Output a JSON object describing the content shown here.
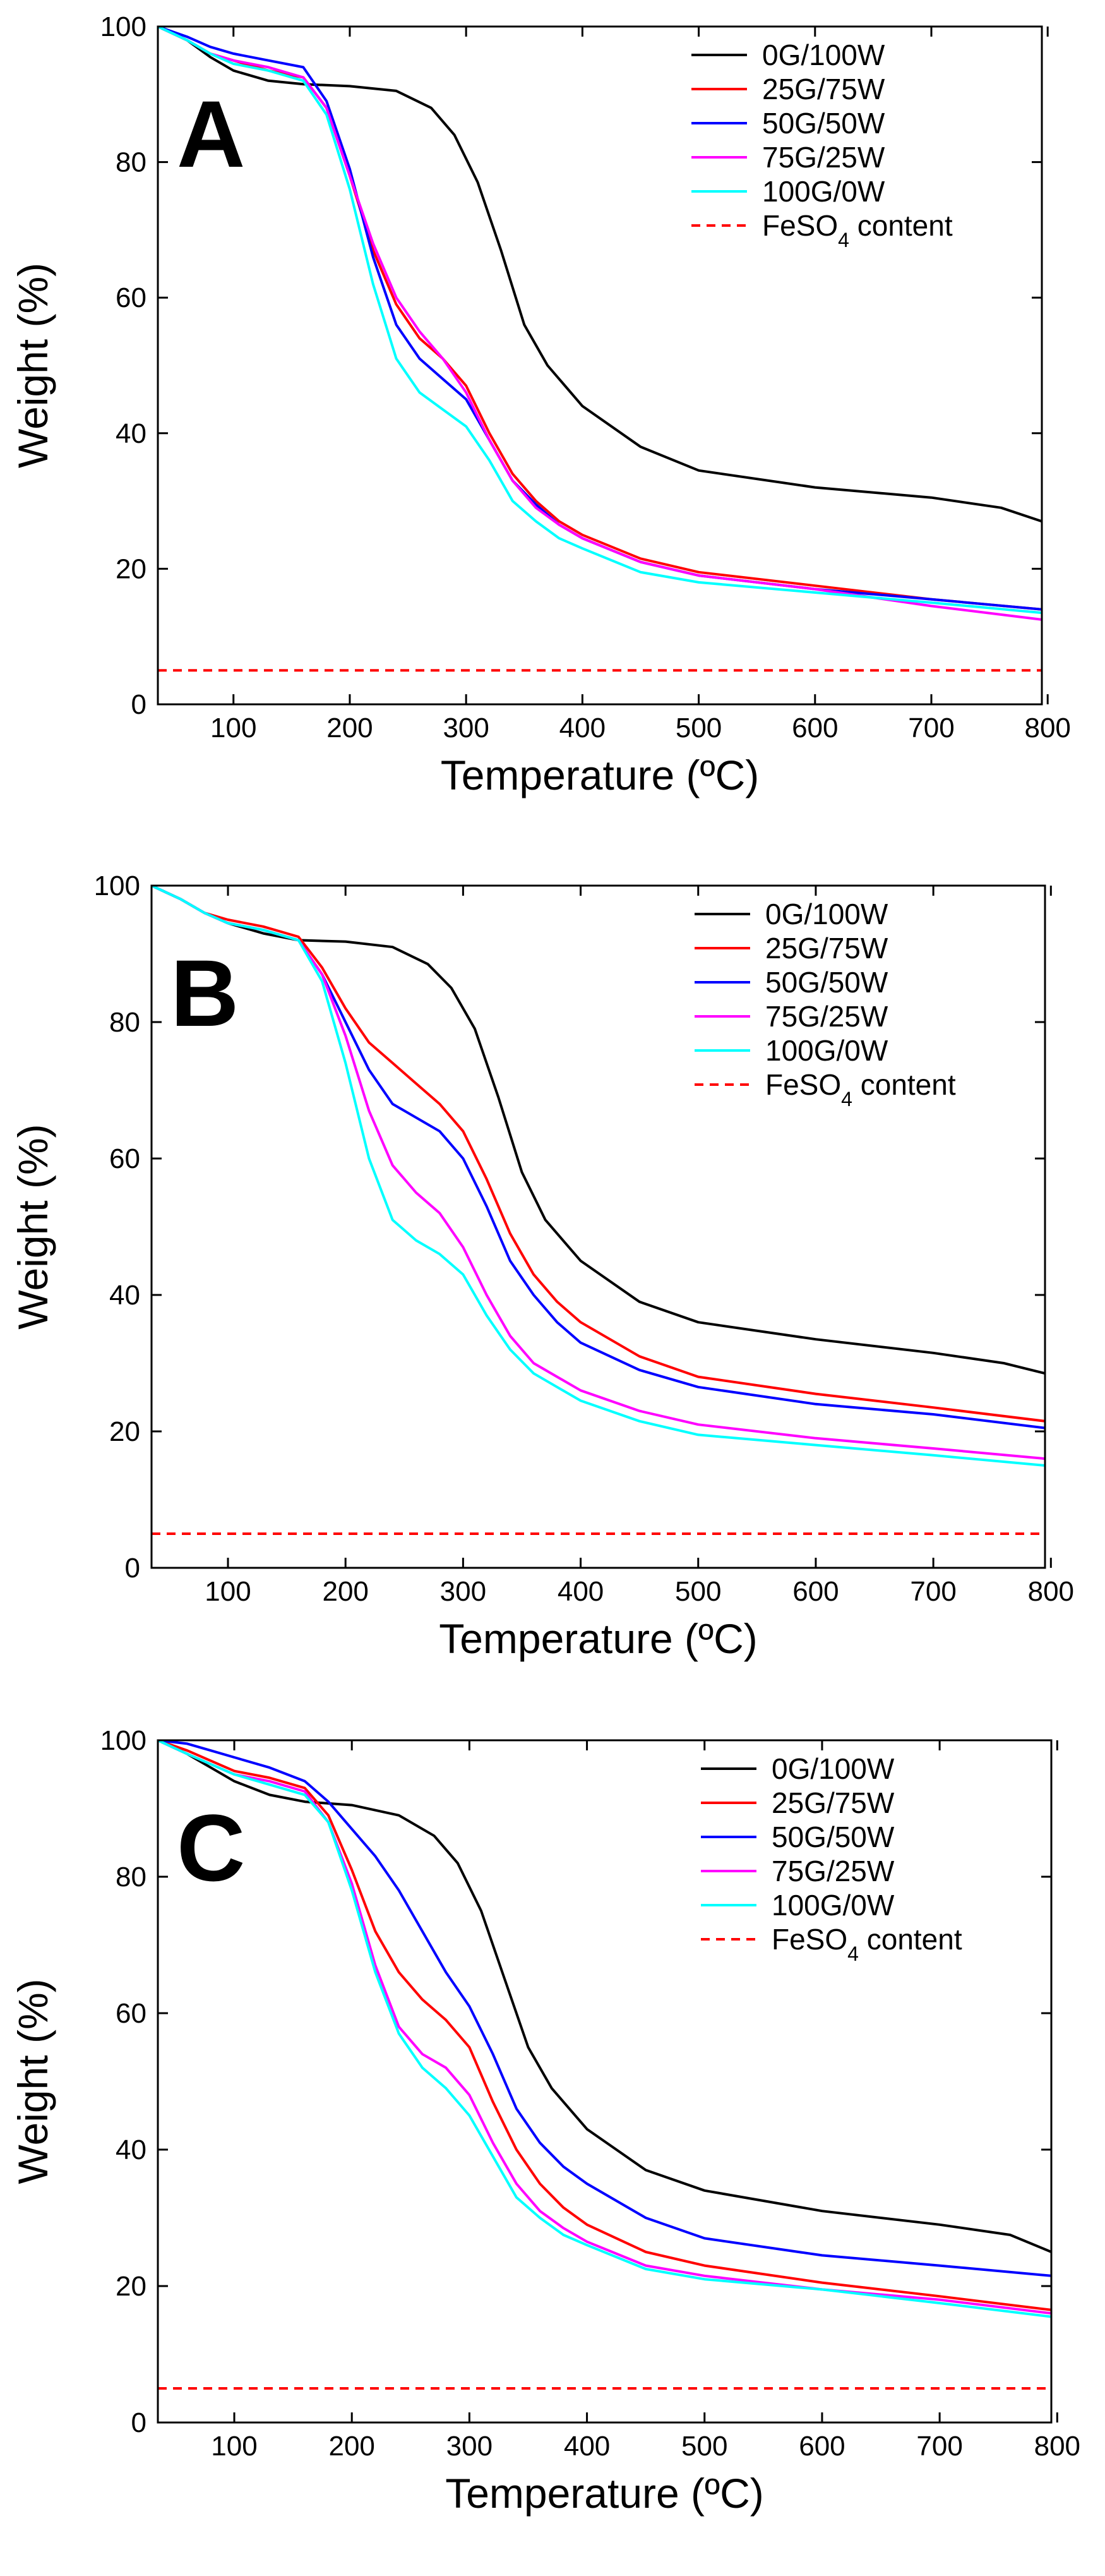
{
  "chart_data": [
    {
      "type": "line",
      "panel_label": "A",
      "xlabel": "Temperature (ºC)",
      "ylabel": "Weight (%)",
      "xlim": [
        35,
        795
      ],
      "ylim": [
        0,
        100
      ],
      "xticks": [
        100,
        200,
        300,
        400,
        500,
        600,
        700,
        800
      ],
      "yticks": [
        0,
        20,
        40,
        60,
        80,
        100
      ],
      "legend": {
        "position": "top-right"
      },
      "series": [
        {
          "name": "0G/100W",
          "color": "#000000",
          "dash": "solid",
          "x": [
            35,
            60,
            80,
            100,
            130,
            160,
            200,
            240,
            270,
            290,
            310,
            330,
            350,
            370,
            400,
            450,
            500,
            600,
            700,
            760,
            795
          ],
          "y": [
            100,
            98,
            95.5,
            93.5,
            92,
            91.5,
            91.2,
            90.5,
            88,
            84,
            77,
            67,
            56,
            50,
            44,
            38,
            34.5,
            32,
            30.5,
            29,
            27
          ]
        },
        {
          "name": "25G/75W",
          "color": "#ff0000",
          "dash": "solid",
          "x": [
            35,
            60,
            80,
            100,
            130,
            160,
            180,
            200,
            220,
            240,
            260,
            280,
            300,
            320,
            340,
            360,
            380,
            400,
            450,
            500,
            600,
            700,
            795
          ],
          "y": [
            100,
            98,
            96,
            95,
            93.5,
            92.5,
            88,
            78,
            67,
            59,
            54,
            51,
            47,
            40,
            34,
            30,
            27,
            25,
            21.5,
            19.5,
            17.5,
            15.5,
            14
          ]
        },
        {
          "name": "50G/50W",
          "color": "#0000ff",
          "dash": "solid",
          "x": [
            35,
            60,
            80,
            100,
            130,
            160,
            180,
            200,
            220,
            240,
            260,
            280,
            300,
            320,
            340,
            360,
            380,
            400,
            450,
            500,
            600,
            700,
            795
          ],
          "y": [
            100,
            98.5,
            97,
            96,
            95,
            94,
            89,
            79,
            66,
            56,
            51,
            48,
            45,
            39,
            33,
            29.5,
            26.5,
            24.5,
            21,
            19,
            17,
            15.5,
            14
          ]
        },
        {
          "name": "75G/25W",
          "color": "#ff00ff",
          "dash": "solid",
          "x": [
            35,
            60,
            80,
            100,
            130,
            160,
            180,
            200,
            220,
            240,
            260,
            280,
            300,
            320,
            340,
            360,
            380,
            400,
            450,
            500,
            600,
            700,
            795
          ],
          "y": [
            100,
            98,
            96,
            95,
            94,
            92.5,
            88,
            78,
            68,
            60,
            55,
            51,
            46,
            39,
            33,
            29,
            26.5,
            24.5,
            21,
            19,
            17,
            14.5,
            12.5
          ]
        },
        {
          "name": "100G/0W",
          "color": "#00ffff",
          "dash": "solid",
          "x": [
            35,
            60,
            80,
            100,
            130,
            160,
            180,
            200,
            220,
            240,
            260,
            280,
            300,
            320,
            340,
            360,
            380,
            400,
            450,
            500,
            600,
            700,
            795
          ],
          "y": [
            100,
            98,
            96,
            94.5,
            93.5,
            92,
            87,
            76,
            62,
            51,
            46,
            43.5,
            41,
            36,
            30,
            27,
            24.5,
            23,
            19.5,
            18,
            16.5,
            15,
            13.5
          ]
        },
        {
          "name": "FeSO4 content",
          "color": "#ff0000",
          "dash": "dashed",
          "x": [
            35,
            795
          ],
          "y": [
            5,
            5
          ]
        }
      ]
    },
    {
      "type": "line",
      "panel_label": "B",
      "xlabel": "Temperature (ºC)",
      "ylabel": "Weight (%)",
      "xlim": [
        35,
        795
      ],
      "ylim": [
        0,
        100
      ],
      "xticks": [
        100,
        200,
        300,
        400,
        500,
        600,
        700,
        800
      ],
      "yticks": [
        0,
        20,
        40,
        60,
        80,
        100
      ],
      "legend": {
        "position": "top-right"
      },
      "series": [
        {
          "name": "0G/100W",
          "color": "#000000",
          "dash": "solid",
          "x": [
            35,
            60,
            80,
            100,
            130,
            160,
            200,
            240,
            270,
            290,
            310,
            330,
            350,
            370,
            400,
            450,
            500,
            600,
            700,
            760,
            795
          ],
          "y": [
            100,
            98,
            96,
            94.5,
            93,
            92,
            91.8,
            91,
            88.5,
            85,
            79,
            69,
            58,
            51,
            45,
            39,
            36,
            33.5,
            31.5,
            30,
            28.5
          ]
        },
        {
          "name": "25G/75W",
          "color": "#ff0000",
          "dash": "solid",
          "x": [
            35,
            60,
            80,
            100,
            130,
            160,
            180,
            200,
            220,
            240,
            260,
            280,
            300,
            320,
            340,
            360,
            380,
            400,
            450,
            500,
            600,
            700,
            795
          ],
          "y": [
            100,
            98,
            96,
            95,
            94,
            92.5,
            88,
            82,
            77,
            74,
            71,
            68,
            64,
            57,
            49,
            43,
            39,
            36,
            31,
            28,
            25.5,
            23.5,
            21.5
          ]
        },
        {
          "name": "50G/50W",
          "color": "#0000ff",
          "dash": "solid",
          "x": [
            35,
            60,
            80,
            100,
            130,
            160,
            180,
            200,
            220,
            240,
            260,
            280,
            300,
            320,
            340,
            360,
            380,
            400,
            450,
            500,
            600,
            700,
            795
          ],
          "y": [
            100,
            98,
            96,
            94.5,
            93.5,
            92,
            87,
            80,
            73,
            68,
            66,
            64,
            60,
            53,
            45,
            40,
            36,
            33,
            29,
            26.5,
            24,
            22.5,
            20.5
          ]
        },
        {
          "name": "75G/25W",
          "color": "#ff00ff",
          "dash": "solid",
          "x": [
            35,
            60,
            80,
            100,
            130,
            160,
            180,
            200,
            220,
            240,
            260,
            280,
            300,
            320,
            340,
            360,
            380,
            400,
            450,
            500,
            600,
            700,
            795
          ],
          "y": [
            100,
            98,
            96,
            94.5,
            93.5,
            92,
            87,
            78,
            67,
            59,
            55,
            52,
            47,
            40,
            34,
            30,
            28,
            26,
            23,
            21,
            19,
            17.5,
            16
          ]
        },
        {
          "name": "100G/0W",
          "color": "#00ffff",
          "dash": "solid",
          "x": [
            35,
            60,
            80,
            100,
            130,
            160,
            180,
            200,
            220,
            240,
            260,
            280,
            300,
            320,
            340,
            360,
            380,
            400,
            450,
            500,
            600,
            700,
            795
          ],
          "y": [
            100,
            98,
            96,
            94.5,
            93.5,
            92,
            86,
            74,
            60,
            51,
            48,
            46,
            43,
            37,
            32,
            28.5,
            26.5,
            24.5,
            21.5,
            19.5,
            18,
            16.5,
            15
          ]
        },
        {
          "name": "FeSO4 content",
          "color": "#ff0000",
          "dash": "dashed",
          "x": [
            35,
            795
          ],
          "y": [
            5,
            5
          ]
        }
      ]
    },
    {
      "type": "line",
      "panel_label": "C",
      "xlabel": "Temperature (ºC)",
      "ylabel": "Weight (%)",
      "xlim": [
        35,
        795
      ],
      "ylim": [
        0,
        100
      ],
      "xticks": [
        100,
        200,
        300,
        400,
        500,
        600,
        700,
        800
      ],
      "yticks": [
        0,
        20,
        40,
        60,
        80,
        100
      ],
      "legend": {
        "position": "top-right"
      },
      "series": [
        {
          "name": "0G/100W",
          "color": "#000000",
          "dash": "solid",
          "x": [
            35,
            60,
            80,
            100,
            130,
            160,
            200,
            240,
            270,
            290,
            310,
            330,
            350,
            370,
            400,
            450,
            500,
            600,
            700,
            760,
            795
          ],
          "y": [
            100,
            98,
            96,
            94,
            92,
            91,
            90.5,
            89,
            86,
            82,
            75,
            65,
            55,
            49,
            43,
            37,
            34,
            31,
            29,
            27.5,
            25
          ]
        },
        {
          "name": "25G/75W",
          "color": "#ff0000",
          "dash": "solid",
          "x": [
            35,
            60,
            80,
            100,
            130,
            160,
            180,
            200,
            220,
            240,
            260,
            280,
            300,
            320,
            340,
            360,
            380,
            400,
            450,
            500,
            600,
            700,
            795
          ],
          "y": [
            100,
            98.5,
            97,
            95.5,
            94.5,
            93,
            89,
            81,
            72,
            66,
            62,
            59,
            55,
            47,
            40,
            35,
            31.5,
            29,
            25,
            23,
            20.5,
            18.5,
            16.5
          ]
        },
        {
          "name": "50G/50W",
          "color": "#0000ff",
          "dash": "solid",
          "x": [
            35,
            60,
            80,
            100,
            130,
            160,
            180,
            200,
            220,
            240,
            260,
            280,
            300,
            320,
            340,
            360,
            380,
            400,
            450,
            500,
            600,
            700,
            795
          ],
          "y": [
            100,
            99.5,
            98.5,
            97.5,
            96,
            94,
            91,
            87,
            83,
            78,
            72,
            66,
            61,
            54,
            46,
            41,
            37.5,
            35,
            30,
            27,
            24.5,
            23,
            21.5
          ]
        },
        {
          "name": "75G/25W",
          "color": "#ff00ff",
          "dash": "solid",
          "x": [
            35,
            60,
            80,
            100,
            130,
            160,
            180,
            200,
            220,
            240,
            260,
            280,
            300,
            320,
            340,
            360,
            380,
            400,
            450,
            500,
            600,
            700,
            795
          ],
          "y": [
            100,
            98,
            96.5,
            95,
            94,
            92.5,
            88,
            79,
            67,
            58,
            54,
            52,
            48,
            41,
            35,
            31,
            28.5,
            26.5,
            23,
            21.5,
            19.5,
            18,
            16
          ]
        },
        {
          "name": "100G/0W",
          "color": "#00ffff",
          "dash": "solid",
          "x": [
            35,
            60,
            80,
            100,
            130,
            160,
            180,
            200,
            220,
            240,
            260,
            280,
            300,
            320,
            340,
            360,
            380,
            400,
            450,
            500,
            600,
            700,
            795
          ],
          "y": [
            100,
            98,
            96.5,
            95,
            93.5,
            92,
            88,
            78,
            66,
            57,
            52,
            49,
            45,
            39,
            33,
            30,
            27.5,
            26,
            22.5,
            21,
            19.5,
            17.5,
            15.5
          ]
        },
        {
          "name": "FeSO4 content",
          "color": "#ff0000",
          "dash": "dashed",
          "x": [
            35,
            795
          ],
          "y": [
            5,
            5
          ]
        }
      ]
    }
  ]
}
